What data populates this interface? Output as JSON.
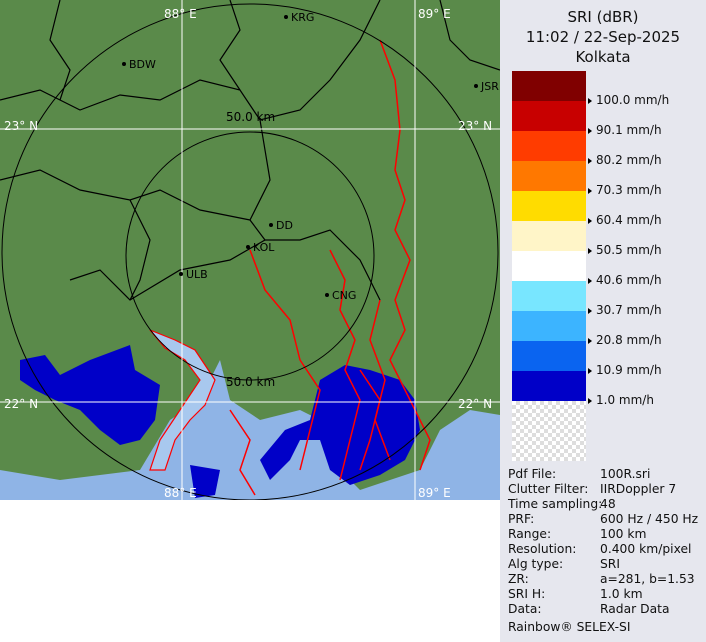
{
  "legend": {
    "title": "SRI (dBR)",
    "datetime": "11:02 / 22-Sep-2025",
    "site": "Kolkata",
    "bands": [
      {
        "color": "#800000",
        "label": "100.0 mm/h"
      },
      {
        "color": "#c80000",
        "label": "90.1 mm/h"
      },
      {
        "color": "#ff3c00",
        "label": "80.2 mm/h"
      },
      {
        "color": "#ff7800",
        "label": "70.3 mm/h"
      },
      {
        "color": "#ffdc00",
        "label": "60.4 mm/h"
      },
      {
        "color": "#fff5c8",
        "label": "50.5 mm/h"
      },
      {
        "color": "#ffffff",
        "label": "40.6 mm/h"
      },
      {
        "color": "#78e6ff",
        "label": "30.7 mm/h"
      },
      {
        "color": "#3cb4ff",
        "label": "20.8 mm/h"
      },
      {
        "color": "#0a64f0",
        "label": "10.9 mm/h"
      },
      {
        "color": "#0000c8",
        "label": "1.0 mm/h"
      }
    ]
  },
  "info": [
    {
      "key": "Pdf File:",
      "value": "100R.sri"
    },
    {
      "key": "Clutter Filter:",
      "value": "IIRDoppler 7"
    },
    {
      "key": "Time sampling:",
      "value": "48"
    },
    {
      "key": "PRF:",
      "value": "600 Hz / 450 Hz"
    },
    {
      "key": "Range:",
      "value": "100 km"
    },
    {
      "key": "Resolution:",
      "value": "0.400 km/pixel"
    },
    {
      "key": "Alg type:",
      "value": "SRI"
    },
    {
      "key": "ZR:",
      "value": "a=281, b=1.53"
    },
    {
      "key": "SRI H:",
      "value": "1.0 km"
    },
    {
      "key": "Data:",
      "value": "Radar Data"
    }
  ],
  "footer": "Rainbow® SELEX-SI",
  "map": {
    "colors": {
      "land": "#5a8a4a",
      "sea": "#8fb4e6",
      "border": "#000000",
      "river": "#ff0000",
      "rain": "#0000c8"
    },
    "grid_labels": {
      "lat_top": "23° N",
      "lat_bottom": "22° N",
      "lon_left_top": "88° E",
      "lon_right_top": "89° E",
      "lon_left_bottom": "88° E",
      "lon_right_bottom": "89° E"
    },
    "range_labels": {
      "inner_top": "50.0 km",
      "inner_bottom": "50.0 km"
    },
    "cities": [
      {
        "name": "KRG"
      },
      {
        "name": "BDW"
      },
      {
        "name": "JSR"
      },
      {
        "name": "DD"
      },
      {
        "name": "KOL"
      },
      {
        "name": "ULB"
      },
      {
        "name": "CNG"
      }
    ]
  }
}
